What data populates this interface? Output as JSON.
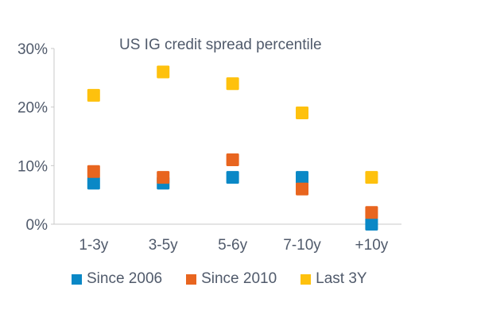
{
  "chart_data": {
    "type": "scatter",
    "title": "US IG credit spread percentile",
    "categories": [
      "1-3y",
      "3-5y",
      "5-6y",
      "7-10y",
      "+10y"
    ],
    "y_ticks": [
      "0%",
      "10%",
      "20%",
      "30%"
    ],
    "ylim": [
      0,
      30
    ],
    "y_unit": "%",
    "grid": false,
    "legend_position": "bottom",
    "series": [
      {
        "name": "Since 2006",
        "color": "#0a88c6",
        "values": [
          7,
          7,
          8,
          8,
          0
        ]
      },
      {
        "name": "Since 2010",
        "color": "#e8651f",
        "values": [
          9,
          8,
          11,
          6,
          2
        ]
      },
      {
        "name": "Last 3Y",
        "color": "#fec10d",
        "values": [
          22,
          26,
          24,
          19,
          8
        ]
      }
    ]
  }
}
